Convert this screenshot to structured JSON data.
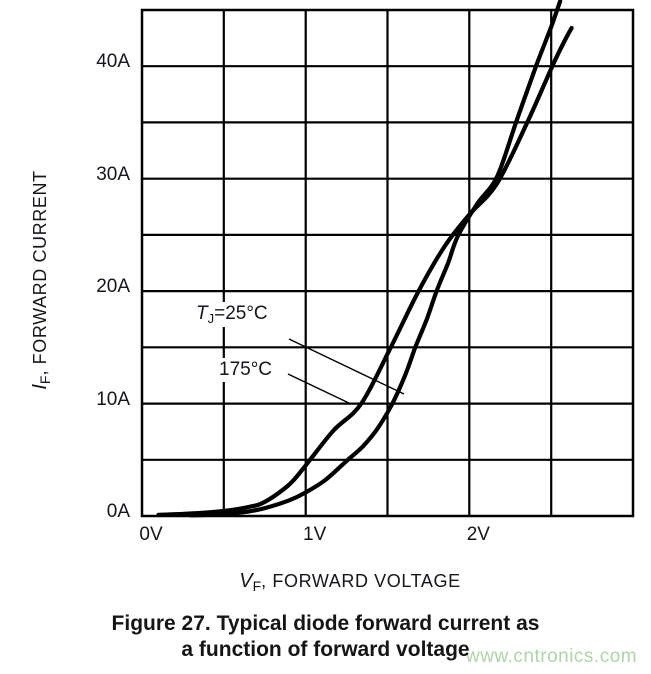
{
  "chart_data": {
    "type": "line",
    "xlabel": {
      "italic": "V",
      "sub": "F",
      "rest": ", FORWARD VOLTAGE"
    },
    "ylabel": {
      "italic": "I",
      "sub": "F",
      "rest": ", FORWARD CURRENT"
    },
    "xlim": [
      0,
      3
    ],
    "ylim": [
      0,
      45
    ],
    "x_grid_step": 0.5,
    "y_grid_step": 5,
    "grid": "on",
    "x_ticks": [
      {
        "v": 0,
        "label": "0V"
      },
      {
        "v": 1,
        "label": "1V"
      },
      {
        "v": 2,
        "label": "2V"
      }
    ],
    "y_ticks": [
      {
        "v": 0,
        "label": "0A"
      },
      {
        "v": 10,
        "label": "10A"
      },
      {
        "v": 20,
        "label": "20A"
      },
      {
        "v": 30,
        "label": "30A"
      },
      {
        "v": 40,
        "label": "40A"
      }
    ],
    "series": [
      {
        "id": "t25",
        "name": "Tj=25°C",
        "points": [
          [
            0.3,
            0.05
          ],
          [
            0.5,
            0.18
          ],
          [
            0.65,
            0.4
          ],
          [
            0.75,
            0.7
          ],
          [
            0.9,
            1.4
          ],
          [
            1.0,
            2.1
          ],
          [
            1.12,
            3.2
          ],
          [
            1.25,
            4.9
          ],
          [
            1.35,
            6.2
          ],
          [
            1.44,
            7.8
          ],
          [
            1.53,
            10.0
          ],
          [
            1.61,
            12.6
          ],
          [
            1.67,
            15.0
          ],
          [
            1.74,
            17.5
          ],
          [
            1.8,
            20.0
          ],
          [
            1.87,
            22.5
          ],
          [
            1.93,
            24.9
          ],
          [
            2.05,
            27.8
          ],
          [
            2.17,
            30.2
          ],
          [
            2.29,
            35.2
          ],
          [
            2.41,
            40.1
          ],
          [
            2.5,
            43.5
          ],
          [
            2.555,
            45.8
          ]
        ]
      },
      {
        "id": "t175",
        "name": "175°C",
        "points": [
          [
            0.1,
            0.1
          ],
          [
            0.3,
            0.22
          ],
          [
            0.5,
            0.45
          ],
          [
            0.65,
            0.8
          ],
          [
            0.75,
            1.25
          ],
          [
            0.9,
            2.8
          ],
          [
            1.0,
            4.5
          ],
          [
            1.17,
            7.6
          ],
          [
            1.34,
            10.0
          ],
          [
            1.52,
            15.0
          ],
          [
            1.69,
            20.0
          ],
          [
            1.85,
            24.0
          ],
          [
            2.0,
            26.8
          ],
          [
            2.17,
            29.6
          ],
          [
            2.36,
            35.2
          ],
          [
            2.51,
            40.1
          ],
          [
            2.58,
            42.2
          ],
          [
            2.625,
            43.4
          ]
        ]
      }
    ],
    "annotations": [
      {
        "id": "t25",
        "text_italic": "T",
        "text_sub": "J",
        "text_rest": "=25°C"
      },
      {
        "id": "t175",
        "text_rest": "175°C"
      }
    ],
    "legend_position": "none"
  },
  "caption": {
    "line1": "Figure 27. Typical diode forward current as",
    "line2": "a function of forward voltage"
  },
  "watermark": {
    "text": "www.cntronics.com",
    "color": "#aed4a7"
  },
  "colors": {
    "curve": "#000000",
    "grid": "#000000"
  }
}
